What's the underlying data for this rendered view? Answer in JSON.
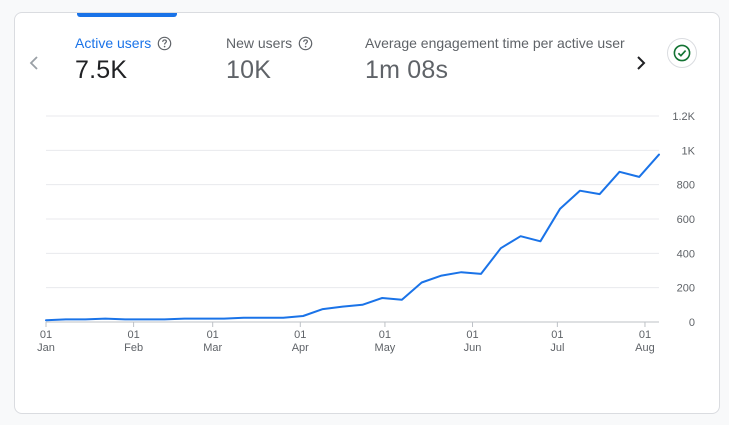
{
  "metrics": [
    {
      "label": "Active users",
      "value": "7.5K"
    },
    {
      "label": "New users",
      "value": "10K"
    },
    {
      "label": "Average engagement time per active user",
      "value": "1m 08s"
    }
  ],
  "colors": {
    "accent": "#1a73e8",
    "line": "#1a73e8",
    "grid": "#e8eaed",
    "status": "#137333"
  },
  "icons": {
    "prev": "chevron-left-icon",
    "next": "chevron-right-icon",
    "help": "help-icon",
    "status": "check-circle-icon"
  },
  "chart_data": {
    "type": "line",
    "title": "",
    "xlabel": "",
    "ylabel": "",
    "ylim": [
      0,
      1200
    ],
    "y_ticks": [
      "0",
      "200",
      "400",
      "600",
      "800",
      "1K",
      "1.2K"
    ],
    "y_tick_values": [
      0,
      200,
      400,
      600,
      800,
      1000,
      1200
    ],
    "x_ticks": [
      {
        "day": "01",
        "month": "Jan",
        "week": 0
      },
      {
        "day": "01",
        "month": "Feb",
        "week": 4.43
      },
      {
        "day": "01",
        "month": "Mar",
        "week": 8.43
      },
      {
        "day": "01",
        "month": "Apr",
        "week": 12.86
      },
      {
        "day": "01",
        "month": "May",
        "week": 17.14
      },
      {
        "day": "01",
        "month": "Jun",
        "week": 21.57
      },
      {
        "day": "01",
        "month": "Jul",
        "week": 25.86
      },
      {
        "day": "01",
        "month": "Aug",
        "week": 30.29
      }
    ],
    "series": [
      {
        "name": "Active users",
        "x": [
          0,
          1,
          2,
          3,
          4,
          5,
          6,
          7,
          8,
          9,
          10,
          11,
          12,
          13,
          14,
          15,
          16,
          17,
          18,
          19,
          20,
          21,
          22,
          23,
          24,
          25,
          26,
          27,
          28,
          29,
          30,
          31
        ],
        "values": [
          10,
          15,
          15,
          20,
          15,
          15,
          15,
          20,
          20,
          20,
          25,
          25,
          25,
          35,
          75,
          90,
          100,
          140,
          130,
          230,
          270,
          290,
          280,
          430,
          500,
          470,
          660,
          765,
          745,
          875,
          845,
          975
        ]
      }
    ]
  }
}
